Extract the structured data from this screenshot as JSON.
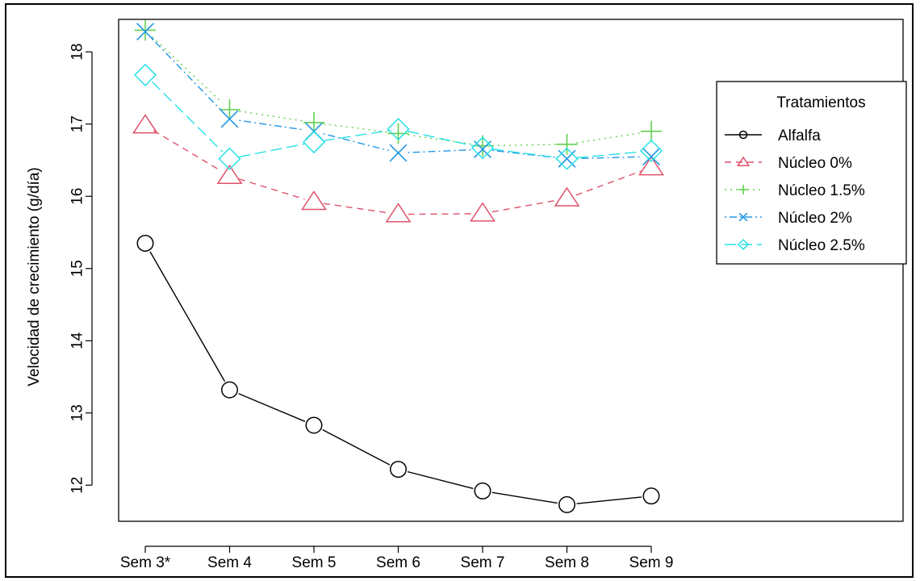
{
  "chart_data": {
    "type": "line",
    "title": "",
    "xlabel": "",
    "ylabel": "Velocidad de crecimiento (g/día)",
    "categories": [
      "Sem 3*",
      "Sem 4",
      "Sem 5",
      "Sem 6",
      "Sem 7",
      "Sem 8",
      "Sem 9"
    ],
    "yticks": [
      "12",
      "13",
      "14",
      "15",
      "16",
      "17",
      "18"
    ],
    "ylim": [
      11.5,
      18.45
    ],
    "grid": false,
    "legend": {
      "title": "Tratamientos",
      "placement": "top-right"
    },
    "series": [
      {
        "name": "Alfalfa",
        "color": "#000000",
        "marker": "circle",
        "line_style": "solid",
        "values": [
          15.35,
          13.32,
          12.83,
          12.22,
          11.92,
          11.73,
          11.85
        ]
      },
      {
        "name": "Núcleo 0%",
        "color": "#df536b",
        "marker": "triangle",
        "line_style": "dashed",
        "values": [
          16.98,
          16.28,
          15.92,
          15.75,
          15.76,
          15.97,
          16.4
        ]
      },
      {
        "name": "Núcleo 1.5%",
        "color": "#61d04f",
        "marker": "plus",
        "line_style": "dotted",
        "values": [
          18.3,
          17.2,
          17.02,
          16.87,
          16.7,
          16.72,
          16.9
        ]
      },
      {
        "name": "Núcleo 2%",
        "color": "#2297e6",
        "marker": "x",
        "line_style": "dotdash",
        "values": [
          18.28,
          17.07,
          16.9,
          16.6,
          16.65,
          16.52,
          16.55
        ]
      },
      {
        "name": "Núcleo 2.5%",
        "color": "#28e2e5",
        "marker": "diamond",
        "line_style": "longdash",
        "values": [
          17.68,
          16.52,
          16.75,
          16.93,
          16.67,
          16.52,
          16.63
        ]
      }
    ]
  }
}
